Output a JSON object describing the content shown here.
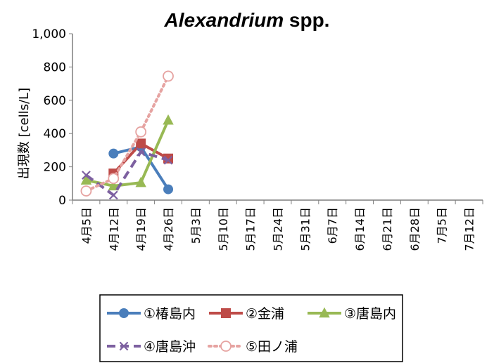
{
  "chart_data": {
    "type": "line",
    "title": {
      "italic": "Alexandrium",
      "rest": " spp."
    },
    "ylabel": "出現数 [cells/L]",
    "xlabel": "",
    "ylim": [
      0,
      1000
    ],
    "yticks": [
      "0",
      "200",
      "400",
      "600",
      "800",
      "1,000"
    ],
    "ytick_values": [
      0,
      200,
      400,
      600,
      800,
      1000
    ],
    "categories": [
      "4月5日",
      "4月12日",
      "4月19日",
      "4月26日",
      "5月3日",
      "5月10日",
      "5月17日",
      "5月24日",
      "5月31日",
      "6月7日",
      "6月14日",
      "6月21日",
      "6月28日",
      "7月5日",
      "7月12日"
    ],
    "grid": false,
    "legend_position": "bottom",
    "series": [
      {
        "name": "①椿島内",
        "color": "#4a7ebb",
        "dash": "solid",
        "marker": "circle",
        "values": [
          null,
          280,
          320,
          65,
          null,
          null,
          null,
          null,
          null,
          null,
          null,
          null,
          null,
          null,
          null
        ]
      },
      {
        "name": "②金浦",
        "color": "#be4b48",
        "dash": "solid",
        "marker": "square",
        "values": [
          null,
          160,
          340,
          250,
          null,
          null,
          null,
          null,
          null,
          null,
          null,
          null,
          null,
          null,
          null
        ]
      },
      {
        "name": "③唐島内",
        "color": "#98b954",
        "dash": "solid",
        "marker": "triangle",
        "values": [
          120,
          85,
          105,
          480,
          null,
          null,
          null,
          null,
          null,
          null,
          null,
          null,
          null,
          null,
          null
        ]
      },
      {
        "name": "④唐島沖",
        "color": "#7d60a0",
        "dash": "dashed",
        "marker": "x",
        "values": [
          150,
          30,
          290,
          240,
          null,
          null,
          null,
          null,
          null,
          null,
          null,
          null,
          null,
          null,
          null
        ]
      },
      {
        "name": "⑤田ノ浦",
        "color": "#e6a3a1",
        "dash": "dotted",
        "marker": "open-circle",
        "values": [
          55,
          130,
          410,
          745,
          null,
          null,
          null,
          null,
          null,
          null,
          null,
          null,
          null,
          null,
          null
        ]
      }
    ]
  }
}
